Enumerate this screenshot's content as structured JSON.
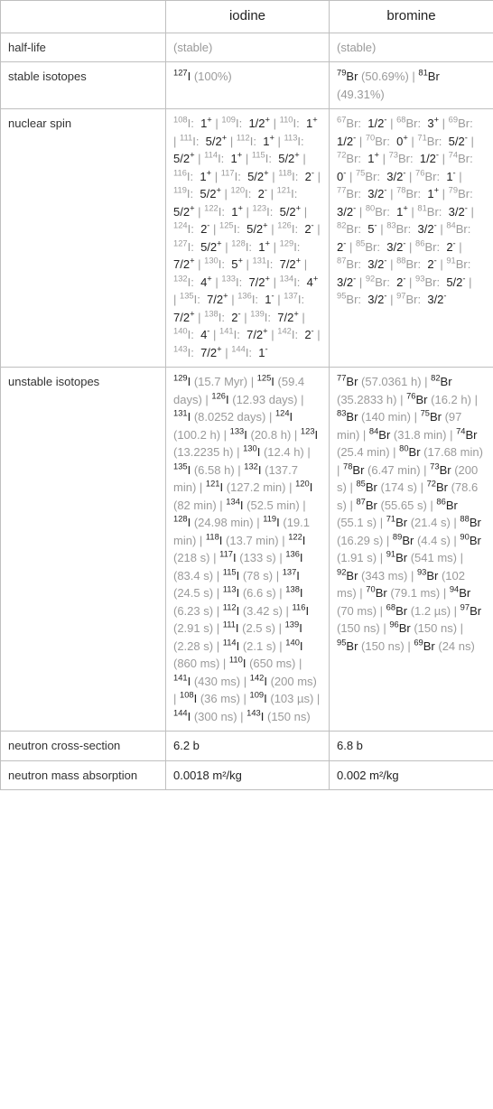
{
  "header": {
    "blank": "",
    "iodine": "iodine",
    "bromine": "bromine"
  },
  "rows": {
    "halflife": {
      "label": "half-life",
      "iodine": "(stable)",
      "bromine": "(stable)"
    },
    "stable": {
      "label": "stable isotopes",
      "iodine": [
        {
          "sup": "127",
          "sym": "I",
          "note": "(100%)"
        }
      ],
      "bromine": [
        {
          "sup": "79",
          "sym": "Br",
          "note": "(50.69%)"
        },
        {
          "sup": "81",
          "sym": "Br",
          "note": "(49.31%)"
        }
      ]
    },
    "spin": {
      "label": "nuclear spin",
      "iodine": [
        {
          "sup": "108",
          "sym": "I:",
          "val": "1",
          "sign": "+"
        },
        {
          "sup": "109",
          "sym": "I:",
          "val": "1/2",
          "sign": "+"
        },
        {
          "sup": "110",
          "sym": "I:",
          "val": "1",
          "sign": "+"
        },
        {
          "sup": "111",
          "sym": "I:",
          "val": "5/2",
          "sign": "+"
        },
        {
          "sup": "112",
          "sym": "I:",
          "val": "1",
          "sign": "+"
        },
        {
          "sup": "113",
          "sym": "I:",
          "val": "5/2",
          "sign": "+"
        },
        {
          "sup": "114",
          "sym": "I:",
          "val": "1",
          "sign": "+"
        },
        {
          "sup": "115",
          "sym": "I:",
          "val": "5/2",
          "sign": "+"
        },
        {
          "sup": "116",
          "sym": "I:",
          "val": "1",
          "sign": "+"
        },
        {
          "sup": "117",
          "sym": "I:",
          "val": "5/2",
          "sign": "+"
        },
        {
          "sup": "118",
          "sym": "I:",
          "val": "2",
          "sign": "-"
        },
        {
          "sup": "119",
          "sym": "I:",
          "val": "5/2",
          "sign": "+"
        },
        {
          "sup": "120",
          "sym": "I:",
          "val": "2",
          "sign": "-"
        },
        {
          "sup": "121",
          "sym": "I:",
          "val": "5/2",
          "sign": "+"
        },
        {
          "sup": "122",
          "sym": "I:",
          "val": "1",
          "sign": "+"
        },
        {
          "sup": "123",
          "sym": "I:",
          "val": "5/2",
          "sign": "+"
        },
        {
          "sup": "124",
          "sym": "I:",
          "val": "2",
          "sign": "-"
        },
        {
          "sup": "125",
          "sym": "I:",
          "val": "5/2",
          "sign": "+"
        },
        {
          "sup": "126",
          "sym": "I:",
          "val": "2",
          "sign": "-"
        },
        {
          "sup": "127",
          "sym": "I:",
          "val": "5/2",
          "sign": "+"
        },
        {
          "sup": "128",
          "sym": "I:",
          "val": "1",
          "sign": "+"
        },
        {
          "sup": "129",
          "sym": "I:",
          "val": "7/2",
          "sign": "+"
        },
        {
          "sup": "130",
          "sym": "I:",
          "val": "5",
          "sign": "+"
        },
        {
          "sup": "131",
          "sym": "I:",
          "val": "7/2",
          "sign": "+"
        },
        {
          "sup": "132",
          "sym": "I:",
          "val": "4",
          "sign": "+"
        },
        {
          "sup": "133",
          "sym": "I:",
          "val": "7/2",
          "sign": "+"
        },
        {
          "sup": "134",
          "sym": "I:",
          "val": "4",
          "sign": "+"
        },
        {
          "sup": "135",
          "sym": "I:",
          "val": "7/2",
          "sign": "+"
        },
        {
          "sup": "136",
          "sym": "I:",
          "val": "1",
          "sign": "-"
        },
        {
          "sup": "137",
          "sym": "I:",
          "val": "7/2",
          "sign": "+"
        },
        {
          "sup": "138",
          "sym": "I:",
          "val": "2",
          "sign": "-"
        },
        {
          "sup": "139",
          "sym": "I:",
          "val": "7/2",
          "sign": "+"
        },
        {
          "sup": "140",
          "sym": "I:",
          "val": "4",
          "sign": "-"
        },
        {
          "sup": "141",
          "sym": "I:",
          "val": "7/2",
          "sign": "+"
        },
        {
          "sup": "142",
          "sym": "I:",
          "val": "2",
          "sign": "-"
        },
        {
          "sup": "143",
          "sym": "I:",
          "val": "7/2",
          "sign": "+"
        },
        {
          "sup": "144",
          "sym": "I:",
          "val": "1",
          "sign": "-"
        }
      ],
      "bromine": [
        {
          "sup": "67",
          "sym": "Br:",
          "val": "1/2",
          "sign": "-"
        },
        {
          "sup": "68",
          "sym": "Br:",
          "val": "3",
          "sign": "+"
        },
        {
          "sup": "69",
          "sym": "Br:",
          "val": "1/2",
          "sign": "-"
        },
        {
          "sup": "70",
          "sym": "Br:",
          "val": "0",
          "sign": "+"
        },
        {
          "sup": "71",
          "sym": "Br:",
          "val": "5/2",
          "sign": "-"
        },
        {
          "sup": "72",
          "sym": "Br:",
          "val": "1",
          "sign": "+"
        },
        {
          "sup": "73",
          "sym": "Br:",
          "val": "1/2",
          "sign": "-"
        },
        {
          "sup": "74",
          "sym": "Br:",
          "val": "0",
          "sign": "-"
        },
        {
          "sup": "75",
          "sym": "Br:",
          "val": "3/2",
          "sign": "-"
        },
        {
          "sup": "76",
          "sym": "Br:",
          "val": "1",
          "sign": "-"
        },
        {
          "sup": "77",
          "sym": "Br:",
          "val": "3/2",
          "sign": "-"
        },
        {
          "sup": "78",
          "sym": "Br:",
          "val": "1",
          "sign": "+"
        },
        {
          "sup": "79",
          "sym": "Br:",
          "val": "3/2",
          "sign": "-"
        },
        {
          "sup": "80",
          "sym": "Br:",
          "val": "1",
          "sign": "+"
        },
        {
          "sup": "81",
          "sym": "Br:",
          "val": "3/2",
          "sign": "-"
        },
        {
          "sup": "82",
          "sym": "Br:",
          "val": "5",
          "sign": "-"
        },
        {
          "sup": "83",
          "sym": "Br:",
          "val": "3/2",
          "sign": "-"
        },
        {
          "sup": "84",
          "sym": "Br:",
          "val": "2",
          "sign": "-"
        },
        {
          "sup": "85",
          "sym": "Br:",
          "val": "3/2",
          "sign": "-"
        },
        {
          "sup": "86",
          "sym": "Br:",
          "val": "2",
          "sign": "-"
        },
        {
          "sup": "87",
          "sym": "Br:",
          "val": "3/2",
          "sign": "-"
        },
        {
          "sup": "88",
          "sym": "Br:",
          "val": "2",
          "sign": "-"
        },
        {
          "sup": "91",
          "sym": "Br:",
          "val": "3/2",
          "sign": "-"
        },
        {
          "sup": "92",
          "sym": "Br:",
          "val": "2",
          "sign": "-"
        },
        {
          "sup": "93",
          "sym": "Br:",
          "val": "5/2",
          "sign": "-"
        },
        {
          "sup": "95",
          "sym": "Br:",
          "val": "3/2",
          "sign": "-"
        },
        {
          "sup": "97",
          "sym": "Br:",
          "val": "3/2",
          "sign": "-"
        }
      ]
    },
    "unstable": {
      "label": "unstable isotopes",
      "iodine": [
        {
          "sup": "129",
          "sym": "I",
          "note": "(15.7 Myr)"
        },
        {
          "sup": "125",
          "sym": "I",
          "note": "(59.4 days)"
        },
        {
          "sup": "126",
          "sym": "I",
          "note": "(12.93 days)"
        },
        {
          "sup": "131",
          "sym": "I",
          "note": "(8.0252 days)"
        },
        {
          "sup": "124",
          "sym": "I",
          "note": "(100.2 h)"
        },
        {
          "sup": "133",
          "sym": "I",
          "note": "(20.8 h)"
        },
        {
          "sup": "123",
          "sym": "I",
          "note": "(13.2235 h)"
        },
        {
          "sup": "130",
          "sym": "I",
          "note": "(12.4 h)"
        },
        {
          "sup": "135",
          "sym": "I",
          "note": "(6.58 h)"
        },
        {
          "sup": "132",
          "sym": "I",
          "note": "(137.7 min)"
        },
        {
          "sup": "121",
          "sym": "I",
          "note": "(127.2 min)"
        },
        {
          "sup": "120",
          "sym": "I",
          "note": "(82 min)"
        },
        {
          "sup": "134",
          "sym": "I",
          "note": "(52.5 min)"
        },
        {
          "sup": "128",
          "sym": "I",
          "note": "(24.98 min)"
        },
        {
          "sup": "119",
          "sym": "I",
          "note": "(19.1 min)"
        },
        {
          "sup": "118",
          "sym": "I",
          "note": "(13.7 min)"
        },
        {
          "sup": "122",
          "sym": "I",
          "note": "(218 s)"
        },
        {
          "sup": "117",
          "sym": "I",
          "note": "(133 s)"
        },
        {
          "sup": "136",
          "sym": "I",
          "note": "(83.4 s)"
        },
        {
          "sup": "115",
          "sym": "I",
          "note": "(78 s)"
        },
        {
          "sup": "137",
          "sym": "I",
          "note": "(24.5 s)"
        },
        {
          "sup": "113",
          "sym": "I",
          "note": "(6.6 s)"
        },
        {
          "sup": "138",
          "sym": "I",
          "note": "(6.23 s)"
        },
        {
          "sup": "112",
          "sym": "I",
          "note": "(3.42 s)"
        },
        {
          "sup": "116",
          "sym": "I",
          "note": "(2.91 s)"
        },
        {
          "sup": "111",
          "sym": "I",
          "note": "(2.5 s)"
        },
        {
          "sup": "139",
          "sym": "I",
          "note": "(2.28 s)"
        },
        {
          "sup": "114",
          "sym": "I",
          "note": "(2.1 s)"
        },
        {
          "sup": "140",
          "sym": "I",
          "note": "(860 ms)"
        },
        {
          "sup": "110",
          "sym": "I",
          "note": "(650 ms)"
        },
        {
          "sup": "141",
          "sym": "I",
          "note": "(430 ms)"
        },
        {
          "sup": "142",
          "sym": "I",
          "note": "(200 ms)"
        },
        {
          "sup": "108",
          "sym": "I",
          "note": "(36 ms)"
        },
        {
          "sup": "109",
          "sym": "I",
          "note": "(103 µs)"
        },
        {
          "sup": "144",
          "sym": "I",
          "note": "(300 ns)"
        },
        {
          "sup": "143",
          "sym": "I",
          "note": "(150 ns)"
        }
      ],
      "bromine": [
        {
          "sup": "77",
          "sym": "Br",
          "note": "(57.0361 h)"
        },
        {
          "sup": "82",
          "sym": "Br",
          "note": "(35.2833 h)"
        },
        {
          "sup": "76",
          "sym": "Br",
          "note": "(16.2 h)"
        },
        {
          "sup": "83",
          "sym": "Br",
          "note": "(140 min)"
        },
        {
          "sup": "75",
          "sym": "Br",
          "note": "(97 min)"
        },
        {
          "sup": "84",
          "sym": "Br",
          "note": "(31.8 min)"
        },
        {
          "sup": "74",
          "sym": "Br",
          "note": "(25.4 min)"
        },
        {
          "sup": "80",
          "sym": "Br",
          "note": "(17.68 min)"
        },
        {
          "sup": "78",
          "sym": "Br",
          "note": "(6.47 min)"
        },
        {
          "sup": "73",
          "sym": "Br",
          "note": "(200 s)"
        },
        {
          "sup": "85",
          "sym": "Br",
          "note": "(174 s)"
        },
        {
          "sup": "72",
          "sym": "Br",
          "note": "(78.6 s)"
        },
        {
          "sup": "87",
          "sym": "Br",
          "note": "(55.65 s)"
        },
        {
          "sup": "86",
          "sym": "Br",
          "note": "(55.1 s)"
        },
        {
          "sup": "71",
          "sym": "Br",
          "note": "(21.4 s)"
        },
        {
          "sup": "88",
          "sym": "Br",
          "note": "(16.29 s)"
        },
        {
          "sup": "89",
          "sym": "Br",
          "note": "(4.4 s)"
        },
        {
          "sup": "90",
          "sym": "Br",
          "note": "(1.91 s)"
        },
        {
          "sup": "91",
          "sym": "Br",
          "note": "(541 ms)"
        },
        {
          "sup": "92",
          "sym": "Br",
          "note": "(343 ms)"
        },
        {
          "sup": "93",
          "sym": "Br",
          "note": "(102 ms)"
        },
        {
          "sup": "70",
          "sym": "Br",
          "note": "(79.1 ms)"
        },
        {
          "sup": "94",
          "sym": "Br",
          "note": "(70 ms)"
        },
        {
          "sup": "68",
          "sym": "Br",
          "note": "(1.2 µs)"
        },
        {
          "sup": "97",
          "sym": "Br",
          "note": "(150 ns)"
        },
        {
          "sup": "96",
          "sym": "Br",
          "note": "(150 ns)"
        },
        {
          "sup": "95",
          "sym": "Br",
          "note": "(150 ns)"
        },
        {
          "sup": "69",
          "sym": "Br",
          "note": "(24 ns)"
        }
      ]
    },
    "xsection": {
      "label": "neutron cross-section",
      "iodine": "6.2 b",
      "bromine": "6.8 b"
    },
    "massabs": {
      "label": "neutron mass absorption",
      "iodine": "0.0018 m²/kg",
      "bromine": "0.002 m²/kg"
    }
  },
  "sep": " | "
}
